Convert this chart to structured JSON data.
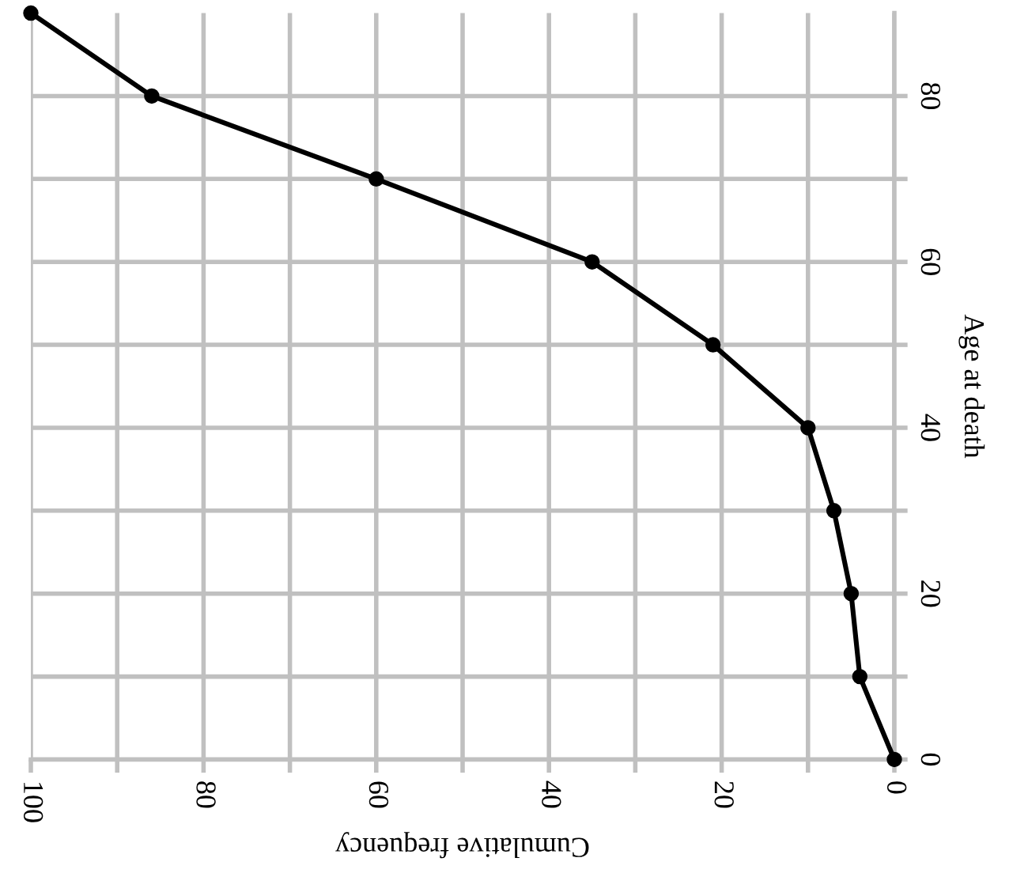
{
  "chart_data": {
    "type": "line",
    "xlabel": "Cumulative frequency",
    "ylabel": "Age at death",
    "x": [
      0,
      4,
      5,
      7,
      10,
      21,
      35,
      60,
      86,
      100
    ],
    "series": [
      {
        "color": "#000000",
        "values": [
          0,
          10,
          20,
          30,
          40,
          50,
          60,
          70,
          80,
          90
        ]
      }
    ],
    "xlim": [
      100,
      0
    ],
    "ylim": [
      0,
      90
    ],
    "xticks": [
      100,
      {
        "value": 90,
        "label": null
      },
      80,
      {
        "value": 70,
        "label": null
      },
      60,
      {
        "value": 50,
        "label": null
      },
      40,
      {
        "value": 30,
        "label": null
      },
      20,
      {
        "value": 10,
        "label": null
      },
      0
    ],
    "yticks": [
      0,
      {
        "value": 10,
        "label": null
      },
      20,
      {
        "value": 30,
        "label": null
      },
      40,
      {
        "value": 50,
        "label": null
      },
      60,
      {
        "value": 70,
        "label": null
      },
      80
    ],
    "grid": true,
    "marker": "circle",
    "line_style": "solid"
  }
}
